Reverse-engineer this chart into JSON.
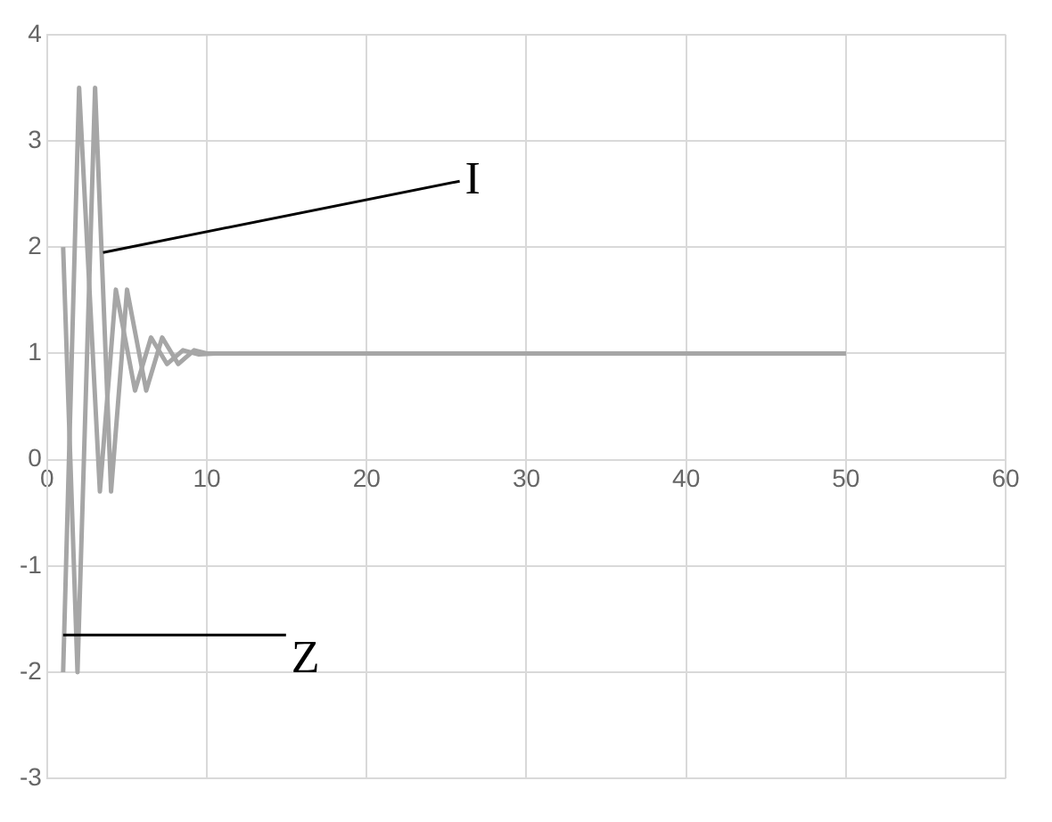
{
  "chart_data": {
    "type": "line",
    "series": [
      {
        "color": "#a6a6a6",
        "x": [
          1,
          1.9,
          3,
          4,
          5,
          6.2,
          7.2,
          8.2,
          9.2,
          10,
          50
        ],
        "values": [
          2,
          -2,
          3.5,
          -0.3,
          1.6,
          0.65,
          1.15,
          0.9,
          1.03,
          1,
          1
        ]
      },
      {
        "color": "#a6a6a6",
        "x": [
          1,
          2,
          3.3,
          4.3,
          5.5,
          6.5,
          7.5,
          8.5,
          9.5,
          10.5,
          50
        ],
        "values": [
          -2,
          3.5,
          -0.3,
          1.6,
          0.65,
          1.15,
          0.9,
          1.03,
          0.99,
          1,
          1
        ]
      }
    ],
    "annotations": [
      {
        "text": "I",
        "x": 3.5,
        "y": 1.95
      },
      {
        "text": "Z",
        "x": 1,
        "y": -1.65
      }
    ],
    "xlim": [
      0,
      60
    ],
    "xticks": [
      0,
      10,
      20,
      30,
      40,
      50,
      60
    ],
    "ylim": [
      -3,
      4
    ],
    "yticks": [
      -3,
      -2,
      -1,
      0,
      1,
      2,
      3,
      4
    ],
    "grid": true,
    "marker": "none",
    "line_style": "solid"
  }
}
